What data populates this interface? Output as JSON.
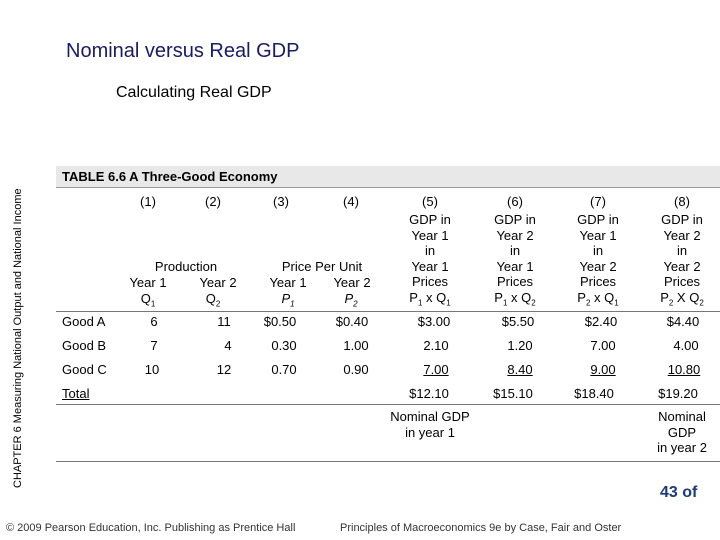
{
  "slide_title": "Nominal versus Real GDP",
  "subtitle": "Calculating Real GDP",
  "chapter_label": "CHAPTER 6  Measuring National Output and National Income",
  "table": {
    "title": "TABLE 6.6  A Three-Good Economy",
    "column_numbers": [
      "(1)",
      "(2)",
      "(3)",
      "(4)",
      "(5)",
      "(6)",
      "(7)",
      "(8)"
    ],
    "group_headers": {
      "production": "Production",
      "price": "Price Per Unit"
    },
    "sub_headers": {
      "year1": "Year 1",
      "year2": "Year 2",
      "q1": "Q",
      "q2": "Q",
      "p1": "P",
      "p2": "P",
      "sub1": "1",
      "sub2": "2"
    },
    "gdp_headers": [
      {
        "l1": "GDP in",
        "l2": "Year 1",
        "l3": "in",
        "l4": "Year 1",
        "l5": "Prices",
        "l6a": "P",
        "s1": "1",
        "op": " x ",
        "l6b": "Q",
        "s2": "1"
      },
      {
        "l1": "GDP in",
        "l2": "Year 2",
        "l3": "in",
        "l4": "Year 1",
        "l5": "Prices",
        "l6a": "P",
        "s1": "1",
        "op": " x ",
        "l6b": "Q",
        "s2": "2"
      },
      {
        "l1": "GDP in",
        "l2": "Year 1",
        "l3": "in",
        "l4": "Year 2",
        "l5": "Prices",
        "l6a": "P",
        "s1": "2",
        "op": " x ",
        "l6b": "Q",
        "s2": "1"
      },
      {
        "l1": "GDP in",
        "l2": "Year 2",
        "l3": "in",
        "l4": "Year 2",
        "l5": "Prices",
        "l6a": "P",
        "s1": "2",
        "op": " X ",
        "l6b": "Q",
        "s2": "2"
      }
    ],
    "rows": [
      {
        "label": "Good A",
        "values": [
          "6",
          "11",
          "$0.50",
          "$0.40",
          "$3.00",
          "$5.50",
          "$2.40",
          "$4.40"
        ]
      },
      {
        "label": "Good B",
        "values": [
          "7",
          "4",
          "0.30",
          "1.00",
          "2.10",
          "1.20",
          "7.00",
          "4.00"
        ]
      },
      {
        "label": "Good C",
        "values": [
          "10",
          "12",
          "0.70",
          "0.90",
          "7.00",
          "8.40",
          "9.00",
          "10.80"
        ]
      }
    ],
    "total": {
      "label": "Total",
      "values": [
        "$12.10",
        "$15.10",
        "$18.40",
        "$19.20"
      ]
    },
    "notes": {
      "nominal1": [
        "Nominal GDP",
        "in year 1"
      ],
      "nominal2": [
        "Nominal",
        "GDP",
        "in year 2"
      ]
    }
  },
  "footer": {
    "copyright": "© 2009 Pearson Education, Inc. Publishing as Prentice Hall",
    "book": "Principles of Macroeconomics 9e by Case, Fair and Oster",
    "page": "43 of"
  }
}
